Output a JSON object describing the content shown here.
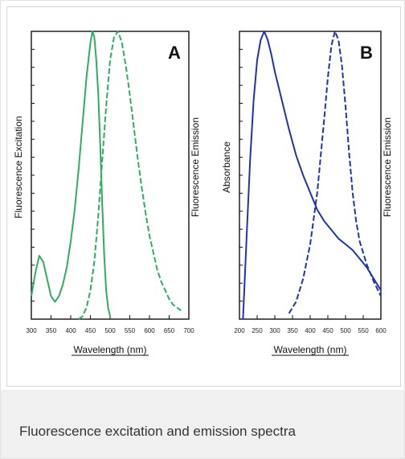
{
  "caption": "Fluorescence excitation and emission spectra",
  "chart_data": [
    {
      "type": "line",
      "panel_label": "A",
      "xlabel": "Wavelength (nm)",
      "ylabel_left": "Fluorescence Excitation",
      "ylabel_right": "Fluorescence Emission",
      "xlim": [
        300,
        700
      ],
      "ylim": [
        0,
        1
      ],
      "x_ticks": [
        "300",
        "350",
        "400",
        "450",
        "500",
        "550",
        "600",
        "650",
        "700"
      ],
      "color": "#33aa66",
      "series": [
        {
          "style": "solid",
          "x": [
            300,
            310,
            320,
            330,
            340,
            350,
            360,
            370,
            380,
            390,
            400,
            410,
            420,
            430,
            440,
            450,
            455,
            460,
            465,
            470,
            475,
            480,
            485,
            490,
            495,
            500
          ],
          "y": [
            0.08,
            0.16,
            0.22,
            0.2,
            0.14,
            0.08,
            0.06,
            0.08,
            0.12,
            0.18,
            0.27,
            0.38,
            0.52,
            0.68,
            0.84,
            0.96,
            1.0,
            0.98,
            0.9,
            0.78,
            0.6,
            0.4,
            0.22,
            0.1,
            0.04,
            0.01
          ]
        },
        {
          "style": "dashed",
          "x": [
            420,
            430,
            440,
            450,
            460,
            470,
            480,
            490,
            500,
            510,
            520,
            530,
            540,
            550,
            560,
            570,
            580,
            590,
            600,
            610,
            620,
            630,
            640,
            650,
            660,
            670,
            680
          ],
          "y": [
            0.0,
            0.01,
            0.04,
            0.1,
            0.2,
            0.36,
            0.55,
            0.74,
            0.9,
            0.98,
            1.0,
            0.96,
            0.88,
            0.78,
            0.67,
            0.56,
            0.46,
            0.37,
            0.29,
            0.23,
            0.17,
            0.13,
            0.1,
            0.07,
            0.05,
            0.04,
            0.03
          ]
        }
      ]
    },
    {
      "type": "line",
      "panel_label": "B",
      "xlabel": "Wavelength (nm)",
      "ylabel_left": "Absorbance",
      "ylabel_right": "Fluorescence Emission",
      "xlim": [
        200,
        600
      ],
      "ylim": [
        0,
        1
      ],
      "x_ticks": [
        "200",
        "250",
        "300",
        "350",
        "400",
        "450",
        "500",
        "550",
        "600"
      ],
      "color": "#2233aa",
      "series": [
        {
          "style": "solid",
          "x": [
            210,
            220,
            230,
            240,
            250,
            260,
            270,
            280,
            290,
            300,
            320,
            340,
            360,
            380,
            400,
            420,
            440,
            460,
            480,
            500,
            520,
            540,
            560,
            580,
            600
          ],
          "y": [
            0.0,
            0.28,
            0.55,
            0.76,
            0.9,
            0.97,
            1.0,
            0.97,
            0.92,
            0.86,
            0.76,
            0.66,
            0.57,
            0.5,
            0.44,
            0.38,
            0.34,
            0.31,
            0.28,
            0.26,
            0.24,
            0.21,
            0.18,
            0.14,
            0.1
          ]
        },
        {
          "style": "dashed",
          "x": [
            340,
            360,
            380,
            400,
            420,
            440,
            450,
            460,
            470,
            480,
            490,
            500,
            510,
            520,
            530,
            540,
            560,
            580,
            600
          ],
          "y": [
            0.02,
            0.06,
            0.14,
            0.26,
            0.44,
            0.7,
            0.84,
            0.95,
            1.0,
            0.97,
            0.88,
            0.74,
            0.58,
            0.44,
            0.34,
            0.27,
            0.19,
            0.13,
            0.08
          ]
        }
      ]
    }
  ]
}
